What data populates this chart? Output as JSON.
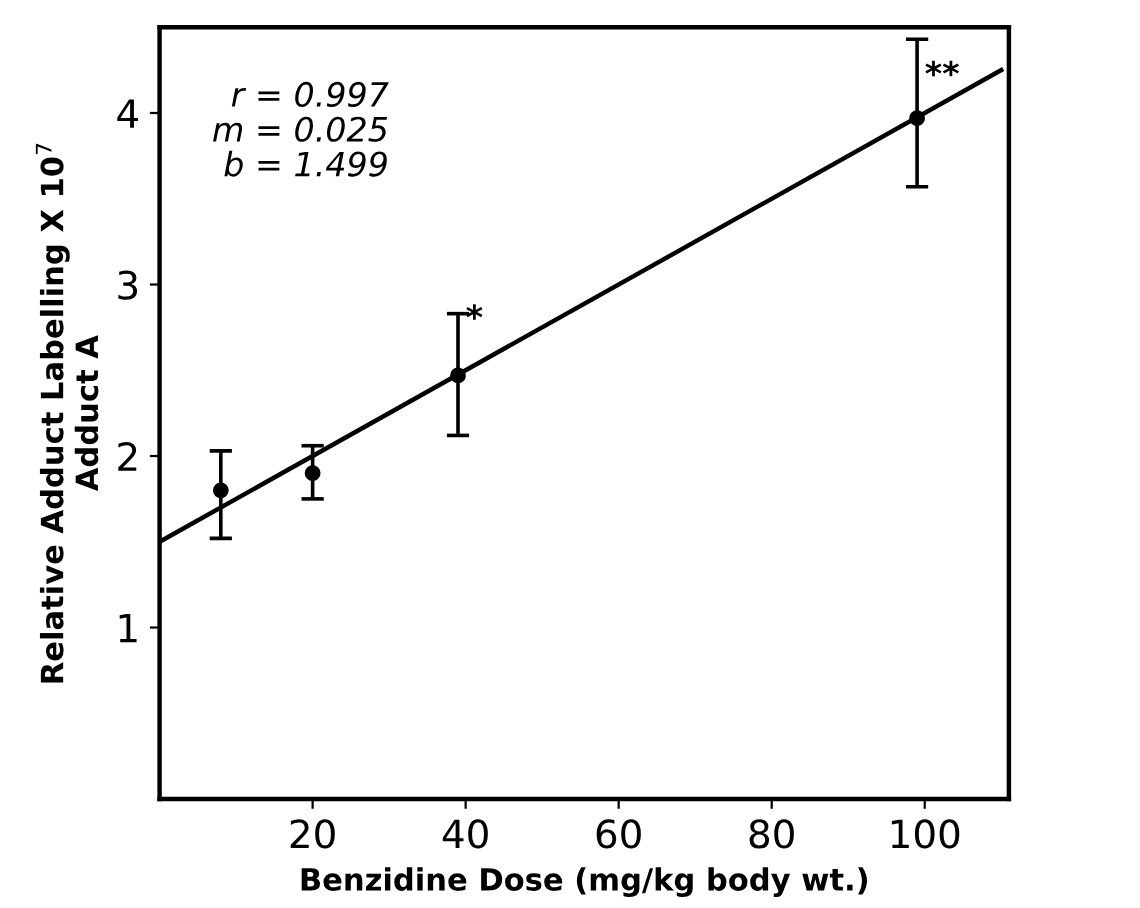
{
  "chart_data": {
    "type": "scatter",
    "xlabel": "Benzidine Dose (mg/kg body wt.)",
    "ylabel": "Relative Adduct Labelling X 10$^{7}$\nAdduct A",
    "xlim": [
      0,
      111
    ],
    "ylim": [
      0,
      4.5
    ],
    "xticks": [
      20,
      40,
      60,
      80,
      100
    ],
    "yticks": [
      1,
      2,
      3,
      4
    ],
    "grid": false,
    "series": [
      {
        "marker": "circle",
        "color": "#000000",
        "x": [
          8,
          20,
          39,
          99
        ],
        "values": [
          1.8,
          1.9,
          2.47,
          3.97
        ],
        "errors": [
          [
            1.52,
            2.03
          ],
          [
            1.75,
            2.06
          ],
          [
            2.12,
            2.83
          ],
          [
            3.57,
            4.43
          ]
        ]
      },
      {
        "type": "line",
        "color": "#000000",
        "x": [
          0,
          110
        ],
        "values": [
          1.5,
          4.25
        ],
        "line_style": "solid",
        "marker": "none"
      }
    ],
    "annotations": [
      "r = 0.997\nm = 0.025\nb = 1.499",
      {
        "text": "*",
        "x": 40,
        "y": 2.7
      },
      {
        "text": "**",
        "x": 100,
        "y": 4.12
      }
    ]
  }
}
